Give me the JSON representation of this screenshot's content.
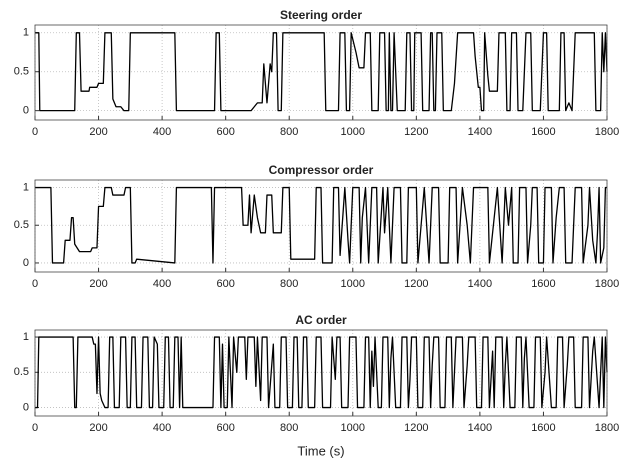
{
  "chart_data": [
    {
      "type": "line",
      "title": "Steering order",
      "xlim": [
        0,
        1800
      ],
      "ylim": [
        -0.12,
        1.1
      ],
      "xticks": [
        0,
        200,
        400,
        600,
        800,
        1000,
        1200,
        1400,
        1600,
        1800
      ],
      "yticks": [
        0,
        0.5,
        1
      ],
      "grid": true,
      "color": "#000000",
      "x": [
        0,
        12,
        15,
        125,
        130,
        140,
        145,
        170,
        172,
        195,
        200,
        215,
        220,
        240,
        245,
        255,
        270,
        280,
        295,
        300,
        440,
        445,
        565,
        570,
        580,
        585,
        680,
        690,
        700,
        715,
        720,
        730,
        740,
        745,
        750,
        760,
        765,
        775,
        780,
        910,
        915,
        955,
        960,
        975,
        980,
        990,
        995,
        1010,
        1020,
        1035,
        1040,
        1055,
        1060,
        1080,
        1085,
        1100,
        1105,
        1112,
        1115,
        1120,
        1125,
        1130,
        1140,
        1165,
        1170,
        1180,
        1185,
        1192,
        1195,
        1215,
        1220,
        1240,
        1245,
        1250,
        1255,
        1260,
        1265,
        1280,
        1285,
        1310,
        1320,
        1330,
        1380,
        1385,
        1395,
        1400,
        1405,
        1412,
        1415,
        1425,
        1430,
        1455,
        1460,
        1480,
        1485,
        1495,
        1500,
        1515,
        1520,
        1535,
        1545,
        1560,
        1565,
        1590,
        1600,
        1610,
        1615,
        1650,
        1655,
        1665,
        1670,
        1680,
        1690,
        1700,
        1760,
        1765,
        1780,
        1785,
        1790,
        1795,
        1800
      ],
      "values": [
        1,
        1,
        0,
        0,
        1,
        1,
        0.25,
        0.25,
        0.3,
        0.3,
        0.35,
        0.35,
        1,
        1,
        0.15,
        0.05,
        0.05,
        0,
        0,
        1,
        1,
        0,
        0,
        1,
        1,
        0,
        0,
        0.05,
        0.1,
        0.1,
        0.6,
        0.1,
        0.6,
        0.5,
        1,
        1,
        0,
        0,
        1,
        1,
        0,
        0,
        1,
        1,
        0,
        0,
        1,
        0.75,
        0.55,
        0.55,
        1,
        1,
        0,
        0,
        1,
        1,
        0,
        0,
        1,
        0,
        0,
        1,
        0,
        0,
        1,
        1,
        0,
        0,
        1,
        1,
        0,
        0,
        1,
        1,
        0,
        0,
        1,
        1,
        0,
        0,
        0.35,
        1,
        1,
        0.7,
        0.3,
        0.3,
        0,
        0,
        1,
        0.45,
        0.25,
        0.25,
        1,
        1,
        0,
        0,
        1,
        1,
        0,
        0,
        1,
        1,
        0,
        0,
        1,
        1,
        0,
        0,
        1,
        1,
        0,
        0.1,
        0,
        1,
        1,
        0,
        0,
        1,
        0.5,
        1,
        0.5
      ]
    },
    {
      "type": "line",
      "title": "Compressor order",
      "xlim": [
        0,
        1800
      ],
      "ylim": [
        -0.12,
        1.1
      ],
      "xticks": [
        0,
        200,
        400,
        600,
        800,
        1000,
        1200,
        1400,
        1600,
        1800
      ],
      "yticks": [
        0,
        0.5,
        1
      ],
      "grid": true,
      "color": "#000000",
      "x": [
        0,
        50,
        55,
        90,
        95,
        110,
        115,
        120,
        125,
        140,
        175,
        180,
        195,
        200,
        215,
        220,
        240,
        245,
        280,
        285,
        300,
        305,
        315,
        320,
        440,
        445,
        555,
        560,
        565,
        650,
        655,
        670,
        675,
        680,
        690,
        700,
        710,
        725,
        730,
        745,
        750,
        775,
        780,
        800,
        805,
        880,
        885,
        900,
        905,
        935,
        940,
        955,
        960,
        975,
        985,
        990,
        1000,
        1020,
        1025,
        1030,
        1040,
        1050,
        1060,
        1075,
        1080,
        1095,
        1100,
        1110,
        1120,
        1130,
        1150,
        1155,
        1170,
        1175,
        1200,
        1205,
        1215,
        1225,
        1240,
        1250,
        1270,
        1275,
        1300,
        1305,
        1325,
        1330,
        1345,
        1360,
        1370,
        1380,
        1425,
        1430,
        1445,
        1455,
        1470,
        1480,
        1490,
        1500,
        1505,
        1520,
        1525,
        1545,
        1550,
        1560,
        1565,
        1580,
        1585,
        1600,
        1605,
        1625,
        1630,
        1640,
        1650,
        1665,
        1670,
        1690,
        1700,
        1720,
        1725,
        1740,
        1745,
        1755,
        1765,
        1770,
        1775,
        1780,
        1790,
        1795,
        1800
      ],
      "values": [
        1,
        1,
        0,
        0,
        0.3,
        0.3,
        0.6,
        0.6,
        0.25,
        0.15,
        0.15,
        0.2,
        0.2,
        0.75,
        0.75,
        1,
        1,
        0.9,
        0.9,
        1,
        1,
        0,
        0,
        0.05,
        0,
        1,
        1,
        0,
        1,
        1,
        0.5,
        0.5,
        0.9,
        0.4,
        0.9,
        0.6,
        0.4,
        0.4,
        0.9,
        0.9,
        0.4,
        0.4,
        1,
        1,
        0.05,
        0.05,
        1,
        1,
        0,
        0,
        1,
        1,
        0.1,
        1,
        0.3,
        0,
        1,
        1,
        0,
        0.6,
        1,
        0,
        1,
        1,
        0,
        1,
        0.4,
        1,
        0,
        1,
        1,
        0,
        0,
        1,
        1,
        0,
        0.5,
        1,
        0,
        1,
        1,
        0,
        0,
        1,
        1,
        0,
        1,
        0.5,
        0,
        1,
        1,
        0,
        0.6,
        1,
        0,
        1,
        0.5,
        1,
        0,
        0,
        1,
        1,
        0,
        0.5,
        1,
        1,
        0,
        0,
        1,
        1,
        0,
        0.6,
        1,
        1,
        0,
        0,
        1,
        1,
        0,
        0.5,
        1,
        0.3,
        0,
        0.4,
        1,
        0,
        0.2,
        1,
        1
      ]
    },
    {
      "type": "line",
      "title": "AC order",
      "xlabel": "Time (s)",
      "xlim": [
        0,
        1800
      ],
      "ylim": [
        -0.12,
        1.1
      ],
      "xticks": [
        0,
        200,
        400,
        600,
        800,
        1000,
        1200,
        1400,
        1600,
        1800
      ],
      "yticks": [
        0,
        0.5,
        1
      ],
      "grid": true,
      "color": "#000000",
      "x": [
        0,
        8,
        12,
        120,
        125,
        130,
        135,
        180,
        185,
        190,
        195,
        200,
        205,
        210,
        220,
        230,
        235,
        245,
        250,
        265,
        270,
        285,
        290,
        300,
        305,
        315,
        320,
        335,
        340,
        355,
        360,
        370,
        375,
        385,
        390,
        405,
        410,
        420,
        425,
        435,
        440,
        450,
        455,
        460,
        465,
        560,
        565,
        580,
        585,
        590,
        595,
        605,
        610,
        620,
        625,
        635,
        640,
        660,
        665,
        670,
        690,
        695,
        700,
        710,
        715,
        730,
        735,
        750,
        755,
        770,
        775,
        790,
        795,
        810,
        815,
        825,
        830,
        840,
        845,
        855,
        860,
        880,
        885,
        900,
        905,
        930,
        935,
        945,
        950,
        960,
        965,
        985,
        990,
        1010,
        1015,
        1035,
        1040,
        1050,
        1055,
        1060,
        1065,
        1070,
        1080,
        1090,
        1095,
        1110,
        1115,
        1120,
        1125,
        1135,
        1150,
        1155,
        1170,
        1175,
        1180,
        1185,
        1200,
        1205,
        1220,
        1225,
        1240,
        1245,
        1250,
        1255,
        1270,
        1275,
        1290,
        1295,
        1310,
        1315,
        1320,
        1325,
        1345,
        1350,
        1360,
        1365,
        1385,
        1390,
        1405,
        1410,
        1425,
        1430,
        1440,
        1445,
        1450,
        1470,
        1475,
        1480,
        1485,
        1495,
        1510,
        1515,
        1530,
        1535,
        1540,
        1545,
        1555,
        1570,
        1575,
        1590,
        1595,
        1605,
        1610,
        1625,
        1640,
        1645,
        1660,
        1665,
        1675,
        1680,
        1695,
        1700,
        1720,
        1725,
        1740,
        1745,
        1755,
        1760,
        1775,
        1785,
        1790,
        1795,
        1800
      ],
      "values": [
        0,
        0,
        1,
        1,
        0,
        0,
        1,
        1,
        0.9,
        0.9,
        0.2,
        1,
        0.2,
        0.1,
        0,
        0,
        1,
        1,
        0,
        0,
        1,
        1,
        0,
        0,
        1,
        1,
        0,
        0,
        1,
        1,
        0,
        0,
        1,
        0.9,
        0,
        0,
        1,
        1,
        0,
        0,
        1,
        1,
        0,
        1,
        0,
        0,
        1,
        1,
        0,
        0.9,
        0,
        0,
        1,
        0,
        1,
        0.5,
        1,
        1,
        0.4,
        1,
        1,
        0.3,
        1,
        0.1,
        1,
        1,
        0,
        0.9,
        0,
        0,
        1,
        1,
        0,
        0,
        1,
        1,
        0,
        0,
        1,
        1,
        0,
        0,
        1,
        1,
        0,
        0,
        1,
        0.4,
        1,
        1,
        0,
        0,
        1,
        1,
        0,
        0,
        1,
        1,
        0,
        0.8,
        0.3,
        1,
        0,
        0,
        1,
        1,
        0,
        0.7,
        1,
        0,
        0,
        1,
        1,
        0,
        0.4,
        1,
        1,
        0,
        0,
        1,
        1,
        0,
        0.6,
        1,
        1,
        0,
        0,
        1,
        1,
        0,
        0.5,
        1,
        1,
        0,
        0.6,
        1,
        1,
        0,
        0,
        1,
        1,
        0,
        0.8,
        0,
        1,
        1,
        0,
        0.6,
        1,
        0,
        0,
        1,
        1,
        0,
        0.7,
        1,
        0,
        0,
        1,
        1,
        0,
        0.5,
        1,
        0,
        0,
        1,
        1,
        0,
        0.6,
        1,
        1,
        0,
        0,
        1,
        1,
        0,
        0.8,
        1,
        0,
        1,
        0,
        1,
        0.5
      ]
    }
  ]
}
